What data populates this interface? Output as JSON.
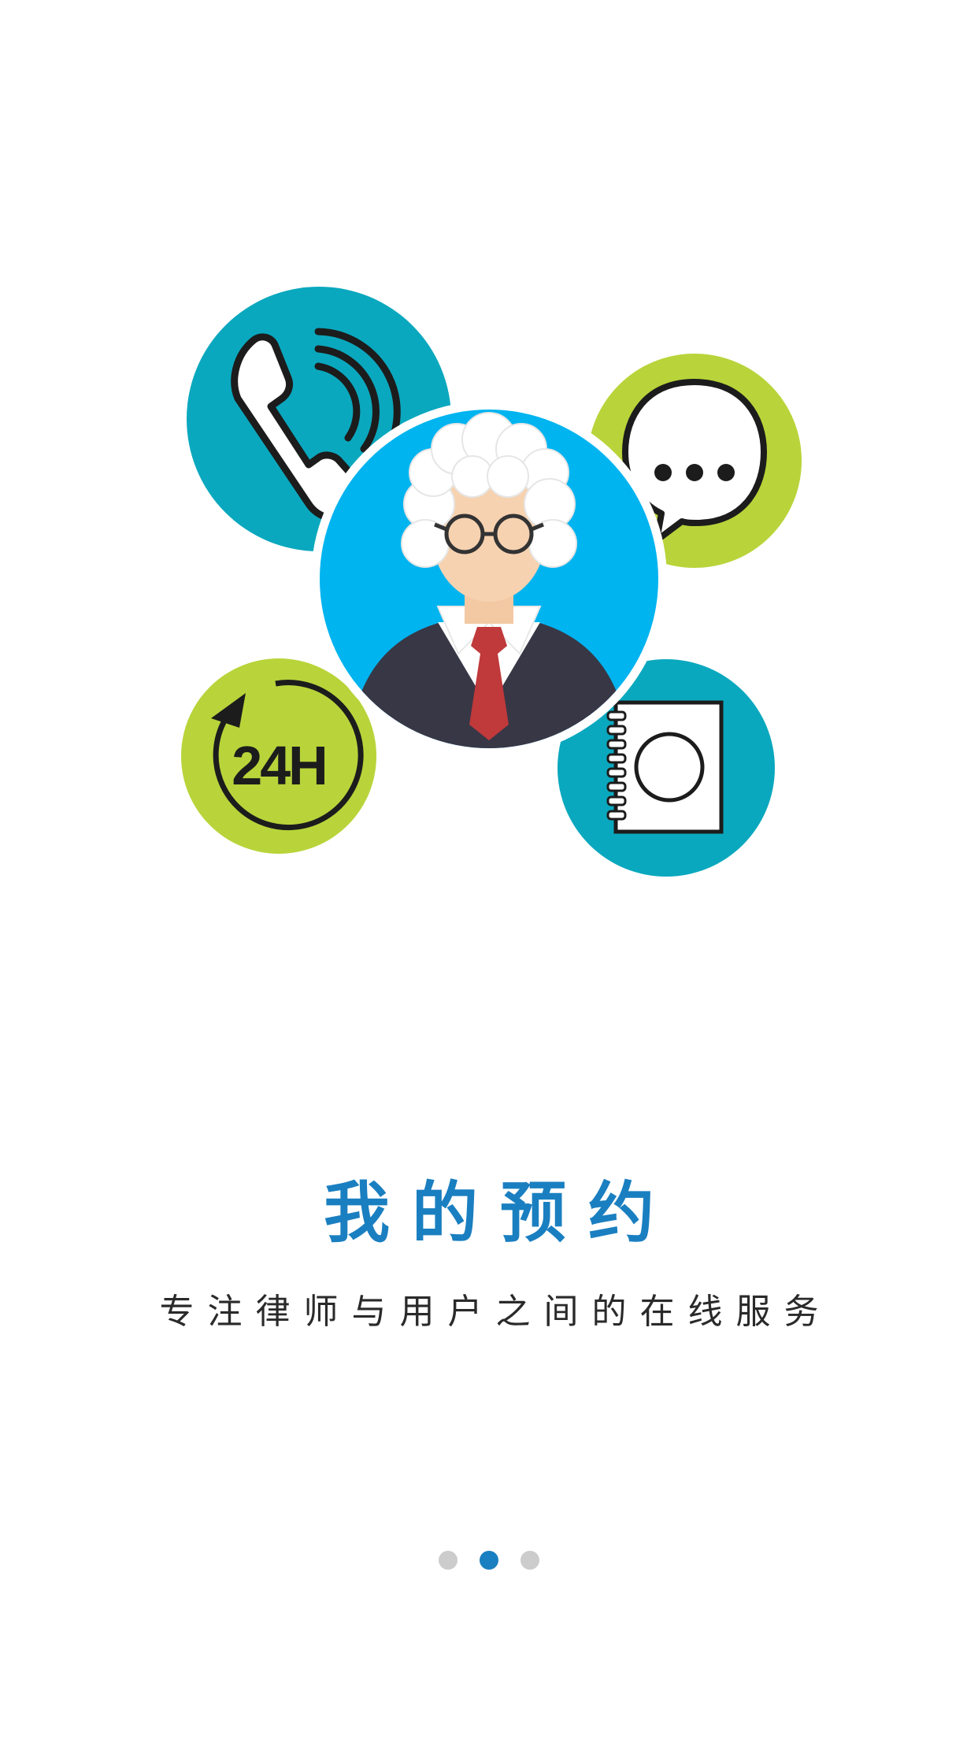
{
  "onboarding": {
    "title": "我的预约",
    "subtitle": "专注律师与用户之间的在线服务",
    "illustration_badge": "24H",
    "pages": [
      {
        "active": false
      },
      {
        "active": true
      },
      {
        "active": false
      }
    ]
  },
  "colors": {
    "accent_blue": "#1a7fc0",
    "teal": "#0aa8be",
    "lime": "#b8d43a",
    "sky_blue": "#00b4f0",
    "suit_dark": "#383746",
    "tie_red": "#c0393b",
    "dot_inactive": "#cccccc"
  },
  "icons": [
    "phone-icon",
    "chat-bubble-icon",
    "clock-24h-icon",
    "notebook-icon",
    "lawyer-avatar"
  ]
}
